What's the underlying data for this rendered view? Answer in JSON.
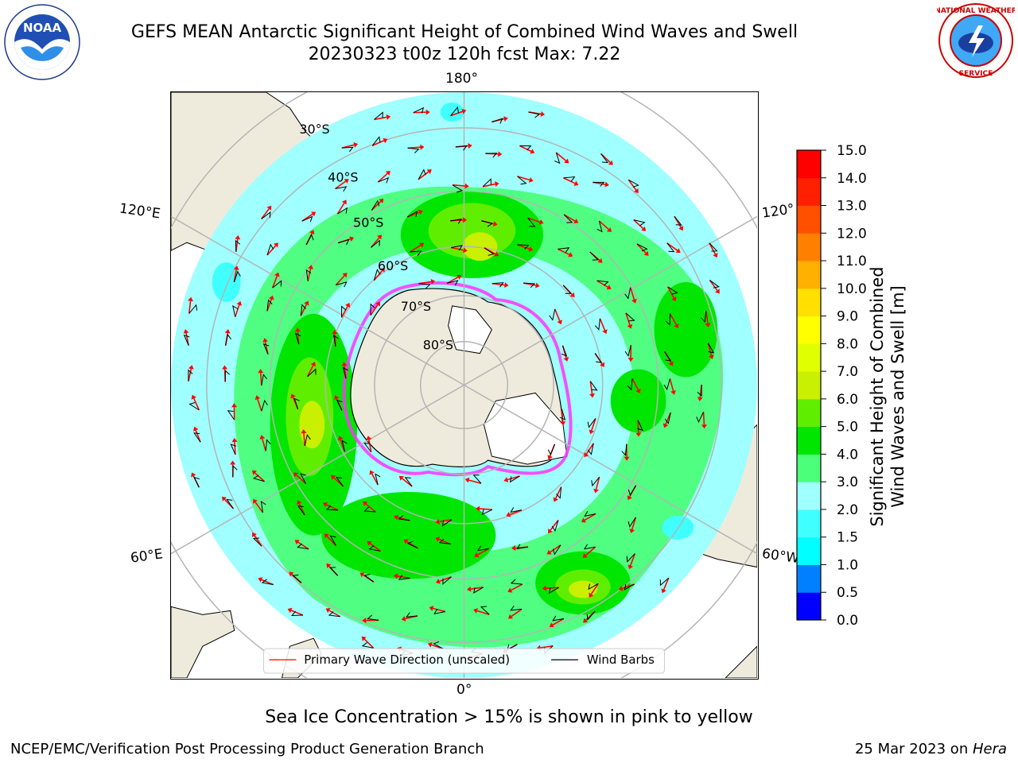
{
  "title": {
    "line1": "GEFS MEAN Antarctic Significant Height of Combined Wind Waves and Swell",
    "line2": "20230323 t00z 120h fcst   Max: 7.22"
  },
  "logos": {
    "left": {
      "name": "NOAA",
      "text": "NOAA",
      "ring_text": "NATIONAL OCEANIC AND ATMOSPHERIC ADMINISTRATION · U.S. DEPARTMENT OF COMMERCE"
    },
    "right": {
      "name": "National Weather Service",
      "ring_text": "NATIONAL WEATHER SERVICE"
    }
  },
  "map": {
    "projection": "south-polar stereographic",
    "longitude_labels": [
      "180°",
      "120°E",
      "120°",
      "60°E",
      "60°W",
      "0°"
    ],
    "latitude_labels": [
      "30°S",
      "40°S",
      "50°S",
      "60°S",
      "70°S",
      "80°S"
    ],
    "colors": {
      "land": "#efebdc",
      "coast": "#000000",
      "grid": "#b4b4b4",
      "wave_arrow": "#ff0000",
      "wind_barb": "#000000",
      "sea_ice": "#ff33ff"
    }
  },
  "legend": {
    "primary_wave_label": "Primary Wave Direction (unscaled)",
    "wind_barbs_label": "Wind Barbs"
  },
  "colorbar": {
    "label_line1": "Significant Height of Combined",
    "label_line2": "Wind Waves and Swell [m]",
    "ticks": [
      "0.0",
      "0.5",
      "1.0",
      "1.5",
      "2.0",
      "3.0",
      "4.0",
      "5.0",
      "6.0",
      "7.0",
      "8.0",
      "9.0",
      "10.0",
      "11.0",
      "12.0",
      "13.0",
      "14.0",
      "15.0"
    ],
    "colors": [
      "#0000ff",
      "#0080ff",
      "#00ffff",
      "#40ffff",
      "#a0ffff",
      "#4cff7a",
      "#00e600",
      "#60ee00",
      "#c8f000",
      "#e0ff00",
      "#ffff00",
      "#ffe000",
      "#ffb000",
      "#ff8000",
      "#ff5000",
      "#ff2000",
      "#ff0000"
    ]
  },
  "footer": {
    "note": "Sea Ice Concentration > 15% is shown in pink to yellow",
    "credit_left": "NCEP/EMC/Verification Post Processing Product Generation Branch",
    "credit_date": "25 Mar 2023 on ",
    "credit_host": "Hera"
  }
}
